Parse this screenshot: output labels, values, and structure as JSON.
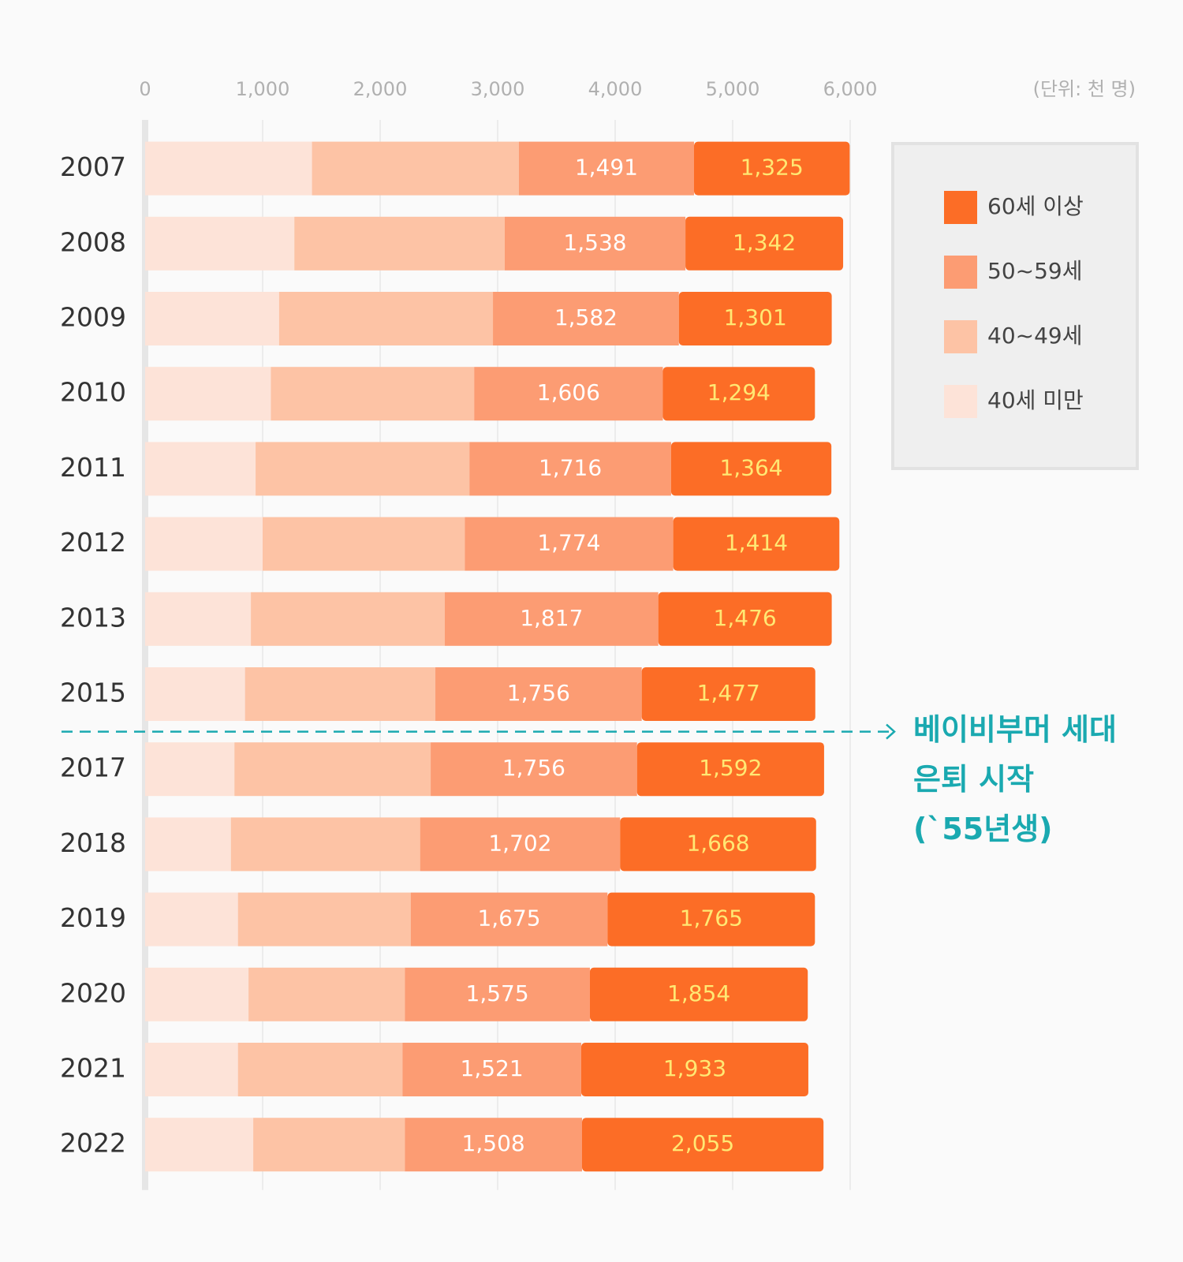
{
  "chart_data": {
    "type": "stacked-bar-horizontal",
    "unit": "(단위: 천 명)",
    "categories": [
      "2007",
      "2008",
      "2009",
      "2010",
      "2011",
      "2012",
      "2013",
      "2015",
      "2017",
      "2018",
      "2019",
      "2020",
      "2021",
      "2022"
    ],
    "series": [
      {
        "name": "40세 미만",
        "color": "#fde3d8",
        "values": [
          1420,
          1270,
          1140,
          1070,
          940,
          1000,
          900,
          850,
          760,
          730,
          790,
          880,
          790,
          920
        ]
      },
      {
        "name": "40~49세",
        "color": "#fdc3a5",
        "values": [
          1760,
          1790,
          1820,
          1730,
          1820,
          1720,
          1650,
          1620,
          1670,
          1610,
          1470,
          1330,
          1400,
          1290
        ]
      },
      {
        "name": "50~59세",
        "color": "#fc9c73",
        "values": [
          1491,
          1538,
          1582,
          1606,
          1716,
          1774,
          1817,
          1756,
          1756,
          1702,
          1675,
          1575,
          1521,
          1508
        ],
        "value_labels": [
          "1,491",
          "1,538",
          "1,582",
          "1,606",
          "1,716",
          "1,774",
          "1,817",
          "1,756",
          "1,756",
          "1,702",
          "1,675",
          "1,575",
          "1,521",
          "1,508"
        ]
      },
      {
        "name": "60세 이상",
        "color": "#fc6d26",
        "values": [
          1325,
          1342,
          1301,
          1294,
          1364,
          1414,
          1476,
          1477,
          1592,
          1668,
          1765,
          1854,
          1933,
          2055
        ],
        "value_labels": [
          "1,325",
          "1,342",
          "1,301",
          "1,294",
          "1,364",
          "1,414",
          "1,476",
          "1,477",
          "1,592",
          "1,668",
          "1,765",
          "1,854",
          "1,933",
          "2,055"
        ]
      }
    ],
    "xlim": [
      0,
      6000
    ],
    "xticks": [
      0,
      {
        "value": 1000,
        "label": "1,000"
      },
      {
        "value": 2000,
        "label": "2,000"
      },
      {
        "value": 3000,
        "label": "3,000"
      },
      {
        "value": 4000,
        "label": "4,000"
      },
      {
        "value": 5000,
        "label": "5,000"
      },
      {
        "value": 6000,
        "label": "6,000"
      }
    ],
    "grid": true,
    "annotation": [
      "베이비부머 세대",
      "은퇴 시작",
      "(`55년생)"
    ]
  }
}
